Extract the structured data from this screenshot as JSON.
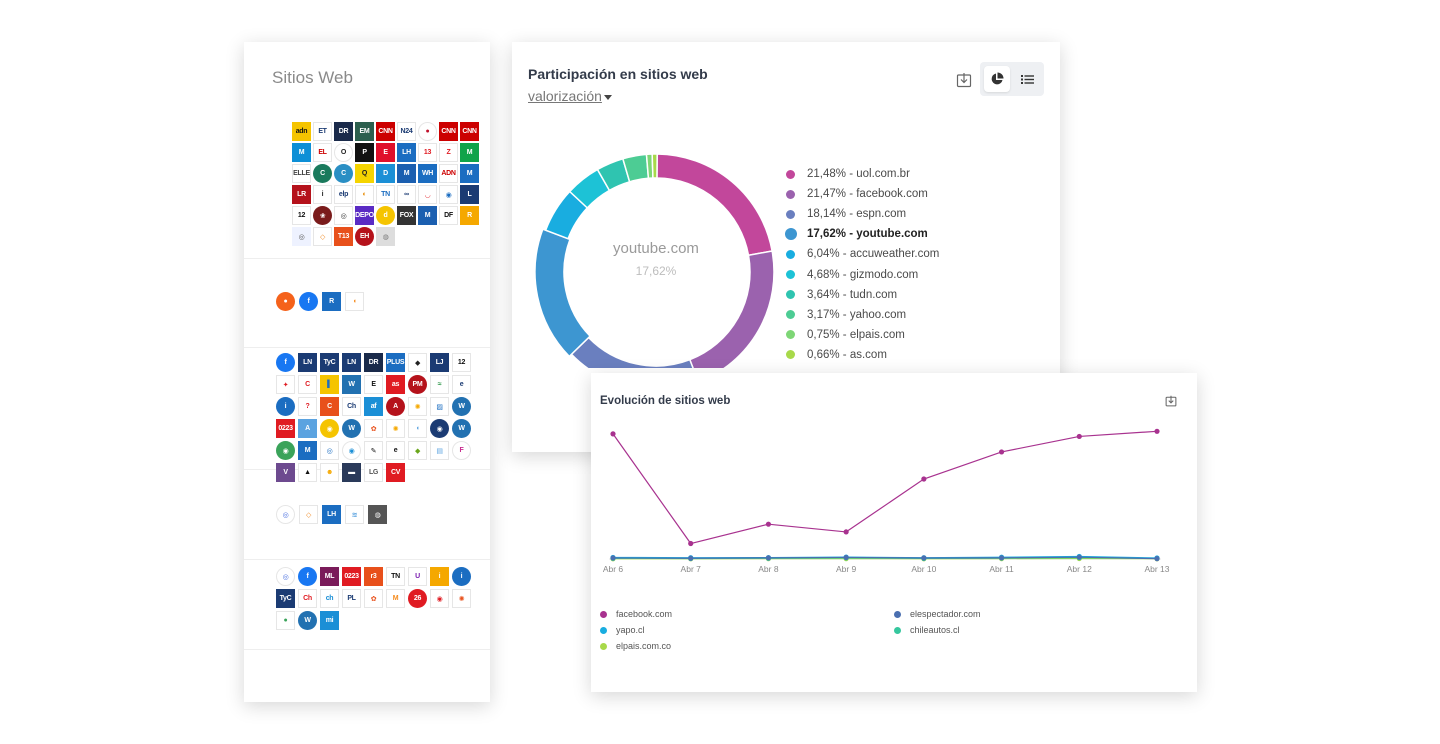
{
  "sites_panel": {
    "title": "Sitios Web",
    "groups": [
      [
        {
          "t": "adn",
          "bg": "#f5c400",
          "fg": "#111"
        },
        {
          "t": "ET",
          "bg": "#fff",
          "fg": "#1b3b73"
        },
        {
          "t": "DR",
          "bg": "#1a2a4a"
        },
        {
          "t": "EM",
          "bg": "#2c5f4e"
        },
        {
          "t": "CNN",
          "bg": "#cc0000"
        },
        {
          "t": "N24",
          "bg": "#fff",
          "fg": "#1b3b73"
        },
        {
          "t": "●",
          "bg": "#fff",
          "fg": "#c0102b",
          "r": true
        },
        {
          "t": "CNN",
          "bg": "#cc0000"
        },
        {
          "t": "CNN",
          "bg": "#cc0000"
        },
        {
          "t": "M",
          "bg": "#0d8fd6"
        },
        {
          "t": "EL",
          "bg": "#fff",
          "fg": "#c00"
        },
        {
          "t": "O",
          "bg": "#fff",
          "fg": "#222",
          "r": true
        },
        {
          "t": "P",
          "bg": "#111"
        },
        {
          "t": "E",
          "bg": "#e0102b"
        },
        {
          "t": "LH",
          "bg": "#1b6dc1"
        },
        {
          "t": "13",
          "bg": "#fff",
          "fg": "#e01b22"
        },
        {
          "t": "Z",
          "bg": "#fff",
          "fg": "#e01b22"
        },
        {
          "t": "M",
          "bg": "#10a34a"
        },
        {
          "t": "ELLE",
          "bg": "#fff",
          "fg": "#444"
        },
        {
          "t": "C",
          "bg": "#1a7a5c",
          "r": true
        },
        {
          "t": "C",
          "bg": "#2a8fc4",
          "r": true
        },
        {
          "t": "Q",
          "bg": "#f5d400",
          "fg": "#222"
        },
        {
          "t": "D",
          "bg": "#1b8fd6"
        },
        {
          "t": "M",
          "bg": "#1b5fb0"
        },
        {
          "t": "WH",
          "bg": "#1b6dc1"
        },
        {
          "t": "ADN",
          "bg": "#fff",
          "fg": "#c00"
        },
        {
          "t": "M",
          "bg": "#1b6dc1"
        },
        {
          "t": "LR",
          "bg": "#b5121b"
        },
        {
          "t": "i",
          "bg": "#fff",
          "fg": "#222"
        },
        {
          "t": "elp",
          "bg": "#fff",
          "fg": "#1b3b73"
        },
        {
          "t": "◐",
          "bg": "#fff",
          "fg": "#e68a00"
        },
        {
          "t": "TN",
          "bg": "#fff",
          "fg": "#1b6dc1"
        },
        {
          "t": "∞",
          "bg": "#fff",
          "fg": "#1b3b73"
        },
        {
          "t": "◡",
          "bg": "#fff",
          "fg": "#e01b22"
        },
        {
          "t": "◉",
          "bg": "#fff",
          "fg": "#1b6dc1"
        },
        {
          "t": "L",
          "bg": "#1b3b73"
        },
        {
          "t": "12",
          "bg": "#fff",
          "fg": "#111"
        },
        {
          "t": "❀",
          "bg": "#7a1b1b",
          "r": true
        },
        {
          "t": "◎",
          "bg": "#fff",
          "fg": "#333"
        },
        {
          "t": "DEPO",
          "bg": "#5a2bc4"
        },
        {
          "t": "d",
          "bg": "#f5c400",
          "r": true
        },
        {
          "t": "FOX",
          "bg": "#333"
        },
        {
          "t": "M",
          "bg": "#1b5fb0"
        },
        {
          "t": "DF",
          "bg": "#fff",
          "fg": "#111"
        },
        {
          "t": "R",
          "bg": "#f5a800"
        },
        {
          "t": "◎",
          "bg": "#eef2ff",
          "fg": "#555"
        },
        {
          "t": "◇",
          "bg": "#fff",
          "fg": "#f08a24"
        },
        {
          "t": "T13",
          "bg": "#e8501b"
        },
        {
          "t": "EH",
          "bg": "#b5121b",
          "r": true
        },
        {
          "t": "◍",
          "bg": "#ddd",
          "fg": "#777"
        }
      ],
      [
        {
          "t": "●",
          "bg": "#f5621b",
          "r": true
        },
        {
          "t": "f",
          "bg": "#1877f2",
          "r": true
        },
        {
          "t": "R",
          "bg": "#1b6dc1"
        },
        {
          "t": "◖",
          "bg": "#fff",
          "fg": "#f58a1b"
        }
      ],
      [
        {
          "t": "f",
          "bg": "#1877f2",
          "r": true
        },
        {
          "t": "LN",
          "bg": "#1b3b73"
        },
        {
          "t": "TyC",
          "bg": "#1b3b73"
        },
        {
          "t": "LN",
          "bg": "#1b3b73"
        },
        {
          "t": "DR",
          "bg": "#1a2a4a"
        },
        {
          "t": "PLUS",
          "bg": "#1b6dc1"
        },
        {
          "t": "◆",
          "bg": "#fff",
          "fg": "#222"
        },
        {
          "t": "LJ",
          "bg": "#1b3b73"
        },
        {
          "t": "12",
          "bg": "#fff",
          "fg": "#111"
        },
        {
          "t": "✦",
          "bg": "#fff",
          "fg": "#e01b22"
        },
        {
          "t": "C",
          "bg": "#fff",
          "fg": "#e01b22"
        },
        {
          "t": "▌",
          "bg": "#f5c400",
          "fg": "#1b6dc1"
        },
        {
          "t": "W",
          "bg": "#2271b1"
        },
        {
          "t": "E",
          "bg": "#fff",
          "fg": "#111"
        },
        {
          "t": "as",
          "bg": "#e01b22"
        },
        {
          "t": "PM",
          "bg": "#b5121b",
          "r": true
        },
        {
          "t": "≈",
          "bg": "#fff",
          "fg": "#1b8f3a"
        },
        {
          "t": "e",
          "bg": "#fff",
          "fg": "#1b3b73"
        },
        {
          "t": "i",
          "bg": "#1b6dc1",
          "r": true
        },
        {
          "t": "?",
          "bg": "#fff",
          "fg": "#e01b22"
        },
        {
          "t": "C",
          "bg": "#e8501b"
        },
        {
          "t": "Ch",
          "bg": "#fff",
          "fg": "#1b3b73"
        },
        {
          "t": "af",
          "bg": "#1b8fd6"
        },
        {
          "t": "A",
          "bg": "#b5121b",
          "r": true
        },
        {
          "t": "✺",
          "bg": "#fff",
          "fg": "#f5a800"
        },
        {
          "t": "▨",
          "bg": "#fff",
          "fg": "#1b6dc1"
        },
        {
          "t": "W",
          "bg": "#2271b1",
          "r": true
        },
        {
          "t": "0223",
          "bg": "#e01b22"
        },
        {
          "t": "A",
          "bg": "#5ba3e0"
        },
        {
          "t": "◉",
          "bg": "#f5c400",
          "r": true
        },
        {
          "t": "W",
          "bg": "#2271b1",
          "r": true
        },
        {
          "t": "✿",
          "bg": "#fff",
          "fg": "#e8501b"
        },
        {
          "t": "✺",
          "bg": "#fff",
          "fg": "#f5a800"
        },
        {
          "t": "◖",
          "bg": "#fff",
          "fg": "#5ba3e0"
        },
        {
          "t": "◉",
          "bg": "#1b3b73",
          "r": true
        },
        {
          "t": "W",
          "bg": "#2271b1",
          "r": true
        },
        {
          "t": "◉",
          "bg": "#3aa35a",
          "r": true
        },
        {
          "t": "M",
          "bg": "#1b6dc1"
        },
        {
          "t": "◎",
          "bg": "#fff",
          "fg": "#1b6dc1"
        },
        {
          "t": "◉",
          "bg": "#fff",
          "fg": "#1b8fd6",
          "r": true
        },
        {
          "t": "✎",
          "bg": "#fff",
          "fg": "#111"
        },
        {
          "t": "e",
          "bg": "#fff",
          "fg": "#111"
        },
        {
          "t": "◆",
          "bg": "#fff",
          "fg": "#6aa61b"
        },
        {
          "t": "▤",
          "bg": "#fff",
          "fg": "#5ba3e0"
        },
        {
          "t": "F",
          "bg": "#fff",
          "fg": "#c72b8e",
          "r": true
        },
        {
          "t": "V",
          "bg": "#6d4a8f"
        },
        {
          "t": "▲",
          "bg": "#fff",
          "fg": "#111"
        },
        {
          "t": "☻",
          "bg": "#fff",
          "fg": "#f5a800"
        },
        {
          "t": "▬",
          "bg": "#2a3a5a"
        },
        {
          "t": "LG",
          "bg": "#fff",
          "fg": "#555"
        },
        {
          "t": "CV",
          "bg": "#e01b22"
        }
      ],
      [
        {
          "t": "◎",
          "bg": "#fff",
          "fg": "#4a6fe0",
          "r": true
        },
        {
          "t": "◇",
          "bg": "#fff",
          "fg": "#f08a24"
        },
        {
          "t": "LH",
          "bg": "#1b6dc1"
        },
        {
          "t": "≋",
          "bg": "#fff",
          "fg": "#5ba3e0"
        },
        {
          "t": "◍",
          "bg": "#555",
          "r": false
        }
      ],
      [
        {
          "t": "◎",
          "bg": "#fff",
          "fg": "#4a6fe0",
          "r": true
        },
        {
          "t": "f",
          "bg": "#1877f2",
          "r": true
        },
        {
          "t": "ML",
          "bg": "#7a1b5a"
        },
        {
          "t": "0223",
          "bg": "#e01b22"
        },
        {
          "t": "r3",
          "bg": "#e8501b"
        },
        {
          "t": "TN",
          "bg": "#fff",
          "fg": "#111"
        },
        {
          "t": "U",
          "bg": "#fff",
          "fg": "#7a1bb0"
        },
        {
          "t": "i",
          "bg": "#f5a800"
        },
        {
          "t": "i",
          "bg": "#1b6dc1",
          "r": true
        },
        {
          "t": "TyC",
          "bg": "#1b3b73"
        },
        {
          "t": "Ch",
          "bg": "#fff",
          "fg": "#e01b22"
        },
        {
          "t": "ch",
          "bg": "#fff",
          "fg": "#1b8fd6"
        },
        {
          "t": "PL",
          "bg": "#fff",
          "fg": "#1b3b73"
        },
        {
          "t": "✿",
          "bg": "#fff",
          "fg": "#e8501b"
        },
        {
          "t": "M",
          "bg": "#fff",
          "fg": "#f58a1b"
        },
        {
          "t": "26",
          "bg": "#e01b22",
          "r": true
        },
        {
          "t": "◉",
          "bg": "#fff",
          "fg": "#e01b22"
        },
        {
          "t": "✺",
          "bg": "#fff",
          "fg": "#e8501b"
        },
        {
          "t": "●",
          "bg": "#fff",
          "fg": "#3aa35a"
        },
        {
          "t": "W",
          "bg": "#2271b1",
          "r": true
        },
        {
          "t": "mi",
          "bg": "#1b8fd6"
        }
      ]
    ]
  },
  "participation": {
    "title": "Participación en sitios web",
    "metric_selector": "valorización",
    "center_label": "youtube.com",
    "center_value": "17,62%",
    "icons": {
      "download": "download-icon",
      "pie": "pie-chart-icon",
      "list": "list-icon"
    },
    "colors": {
      "accent_bg": "#eef0f3"
    }
  },
  "evolution": {
    "title": "Evolución de sitios web",
    "icons": {
      "download": "download-icon"
    }
  },
  "chart_data": [
    {
      "type": "pie",
      "title": "Participación en sitios web",
      "variant": "donut",
      "slices": [
        {
          "label": "21,48% - uol.com.br",
          "name": "uol.com.br",
          "value": 21.48,
          "color": "#c2479b"
        },
        {
          "label": "21,47% - facebook.com",
          "name": "facebook.com",
          "value": 21.47,
          "color": "#9b62ae"
        },
        {
          "label": "18,14% - espn.com",
          "name": "espn.com",
          "value": 18.14,
          "color": "#6a7fbf"
        },
        {
          "label": "17,62% - youtube.com",
          "name": "youtube.com",
          "value": 17.62,
          "color": "#3d96d1",
          "active": true
        },
        {
          "label": "6,04% - accuweather.com",
          "name": "accuweather.com",
          "value": 6.04,
          "color": "#19ade0"
        },
        {
          "label": "4,68% - gizmodo.com",
          "name": "gizmodo.com",
          "value": 4.68,
          "color": "#1dc2d6"
        },
        {
          "label": "3,64% - tudn.com",
          "name": "tudn.com",
          "value": 3.64,
          "color": "#2fc4b0"
        },
        {
          "label": "3,17% - yahoo.com",
          "name": "yahoo.com",
          "value": 3.17,
          "color": "#4dcc94"
        },
        {
          "label": "0,75% - elpais.com",
          "name": "elpais.com",
          "value": 0.75,
          "color": "#7ed676"
        },
        {
          "label": "0,66% - as.com",
          "name": "as.com",
          "value": 0.66,
          "color": "#a8d94a"
        }
      ]
    },
    {
      "type": "line",
      "title": "Evolución de sitios web",
      "categories": [
        "Abr 6",
        "Abr 7",
        "Abr 8",
        "Abr 9",
        "Abr 10",
        "Abr 11",
        "Abr 12",
        "Abr 13"
      ],
      "ylim": [
        0,
        100
      ],
      "grid": false,
      "legend_position": "bottom",
      "series": [
        {
          "name": "facebook.com",
          "color": "#a8328f",
          "values": [
            97,
            12,
            27,
            21,
            62,
            83,
            95,
            99
          ]
        },
        {
          "name": "elespectador.com",
          "color": "#4a6fb0",
          "values": [
            0.8,
            0.6,
            0.9,
            1.2,
            0.8,
            0.9,
            1.4,
            0.3
          ]
        },
        {
          "name": "yapo.cl",
          "color": "#19ade0",
          "values": [
            1.2,
            1.0,
            1.1,
            1.5,
            1.0,
            1.4,
            2.0,
            0.8
          ]
        },
        {
          "name": "chileautos.cl",
          "color": "#35c79e",
          "values": [
            0.6,
            0.4,
            0.6,
            0.9,
            0.5,
            0.7,
            1.0,
            0.5
          ]
        },
        {
          "name": "elpais.com.co",
          "color": "#a8d94a",
          "values": [
            0.2,
            0.2,
            0.3,
            0.3,
            0.2,
            0.3,
            0.4,
            0.2
          ]
        }
      ]
    }
  ]
}
